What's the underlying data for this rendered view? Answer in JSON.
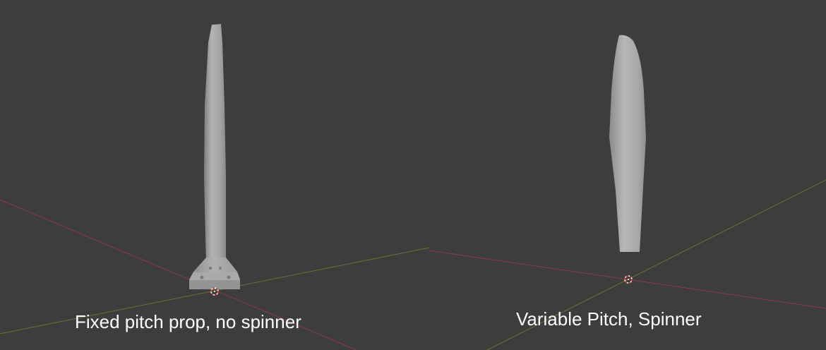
{
  "viewports": {
    "left": {
      "caption": "Fixed pitch prop, no spinner",
      "background_color": "#3d3d3d",
      "x_axis_color": "#8a3a46",
      "y_axis_color": "#5e7a32",
      "model_color": "#a8a8a8",
      "model": "fixed-pitch-blade"
    },
    "right": {
      "caption": "Variable Pitch, Spinner",
      "background_color": "#3d3d3d",
      "x_axis_color": "#8a3a46",
      "y_axis_color": "#5e7a32",
      "model_color": "#a8a8a8",
      "model": "variable-pitch-blade"
    }
  }
}
